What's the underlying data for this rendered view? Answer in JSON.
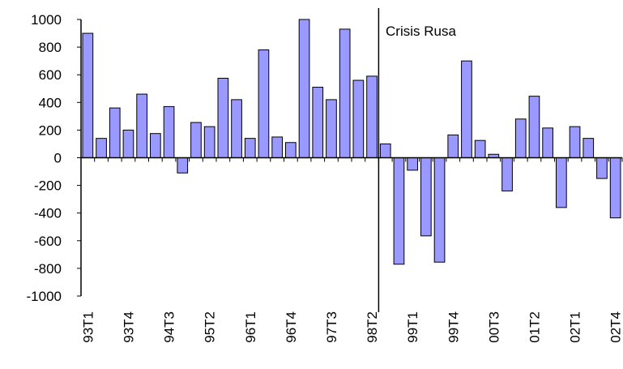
{
  "chart_data": {
    "type": "bar",
    "annotation": "Crisis Rusa",
    "categories": [
      "93T1",
      null,
      null,
      "93T4",
      null,
      null,
      "94T3",
      null,
      null,
      "95T2",
      null,
      null,
      "96T1",
      null,
      null,
      "96T4",
      null,
      null,
      "97T3",
      null,
      null,
      "98T2",
      null,
      null,
      "99T1",
      null,
      null,
      "99T4",
      null,
      null,
      "00T3",
      null,
      null,
      "01T2",
      null,
      null,
      "02T1",
      null,
      null,
      "02T4"
    ],
    "values": [
      900,
      140,
      360,
      200,
      460,
      175,
      370,
      -110,
      255,
      225,
      575,
      420,
      140,
      780,
      150,
      110,
      1020,
      510,
      420,
      930,
      560,
      590,
      100,
      -770,
      -90,
      -565,
      -755,
      165,
      700,
      125,
      25,
      -240,
      280,
      445,
      215,
      -360,
      225,
      140,
      -150,
      -435
    ],
    "color": "#9999ff",
    "ylim": [
      -1000,
      1000
    ],
    "yticks": [
      -1000,
      -800,
      -600,
      -400,
      -200,
      0,
      200,
      400,
      600,
      800,
      1000
    ],
    "grid": false
  }
}
